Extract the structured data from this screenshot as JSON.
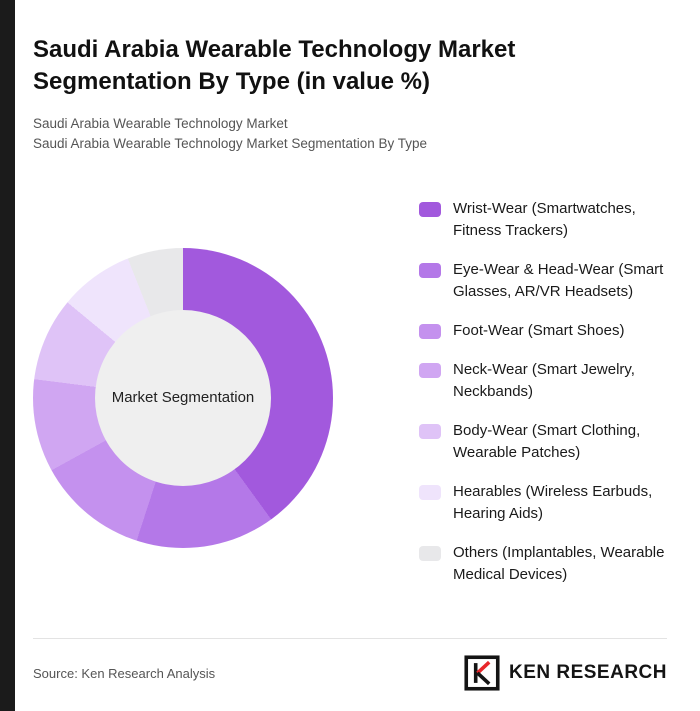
{
  "page": {
    "title": "Saudi Arabia Wearable Technology Market Segmentation By Type (in value %)",
    "subtitle1": "Saudi Arabia Wearable Technology Market",
    "subtitle2": "Saudi Arabia Wearable Technology Market Segmentation By Type",
    "source": "Source: Ken Research Analysis",
    "brand": "KEN RESEARCH"
  },
  "chart_data": {
    "type": "pie",
    "donut": true,
    "title": "Saudi Arabia Wearable Technology Market Segmentation By Type (in value %)",
    "center_label": "Market Segmentation",
    "legend_position": "right",
    "categories": [
      "Wrist-Wear (Smartwatches, Fitness Trackers)",
      "Eye-Wear & Head-Wear (Smart Glasses, AR/VR Headsets)",
      "Foot-Wear (Smart Shoes)",
      "Neck-Wear (Smart Jewelry, Neckbands)",
      "Body-Wear (Smart Clothing, Wearable Patches)",
      "Hearables (Wireless Earbuds, Hearing Aids)",
      "Others (Implantables, Wearable Medical Devices)"
    ],
    "values": [
      40,
      15,
      12,
      10,
      9,
      8,
      6
    ],
    "colors": [
      "#a259dd",
      "#b478e8",
      "#c491ee",
      "#d0a6f2",
      "#dfc3f7",
      "#efe4fc",
      "#e8e8ea"
    ],
    "hole_color": "#efefef",
    "accent_color": "#e8262a"
  }
}
